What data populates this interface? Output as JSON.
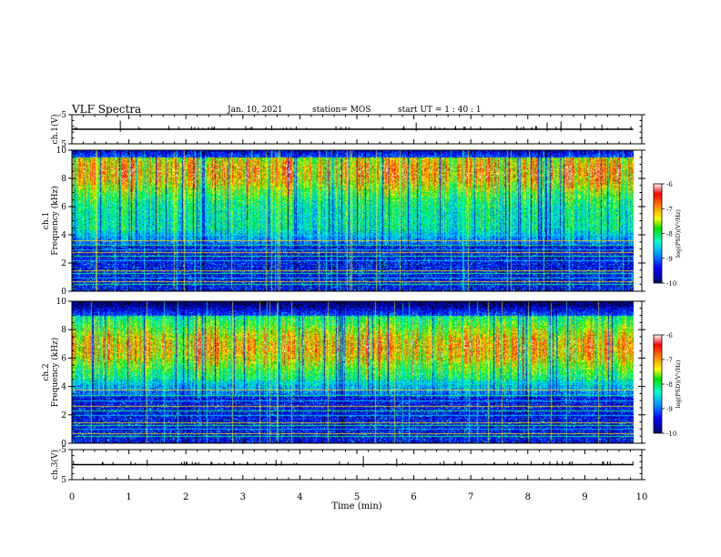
{
  "header": {
    "title": "VLF Spectra",
    "date": "Jan. 10, 2021",
    "station": "station= MOS",
    "start_ut": "start  UT =   1 : 40 : 1"
  },
  "panels": {
    "ch1_wave": {
      "ylabel": "ch.1(V)",
      "yticks": [
        "5",
        "-5"
      ]
    },
    "ch1_spec": {
      "ylabel_line1": "ch.1",
      "ylabel_line2": "Frequency (kHz)",
      "yticks": [
        "0",
        "2",
        "4",
        "6",
        "8",
        "10"
      ]
    },
    "ch2_spec": {
      "ylabel_line1": "ch.2",
      "ylabel_line2": "Frequency (kHz)",
      "yticks": [
        "0",
        "2",
        "4",
        "6",
        "8",
        "10"
      ]
    },
    "ch3_wave": {
      "ylabel": "ch.3(V)",
      "yticks": [
        "5",
        "-5"
      ]
    }
  },
  "xaxis": {
    "label": "Time (min)",
    "ticks": [
      "0",
      "1",
      "2",
      "3",
      "4",
      "5",
      "6",
      "7",
      "8",
      "9",
      "10"
    ]
  },
  "colorbar": {
    "label": "log(PSD)(V²/Hz)",
    "ticks": [
      "-6",
      "-7",
      "-8",
      "-9",
      "-10"
    ]
  },
  "chart_data": [
    {
      "type": "line",
      "panel": "ch1_wave",
      "xlabel": "",
      "ylabel": "ch.1(V)",
      "xlim": [
        0,
        10
      ],
      "ylim": [
        -5,
        5
      ],
      "series": [
        {
          "x": [
            0,
            9.85
          ],
          "values": [
            0,
            0
          ]
        }
      ]
    },
    {
      "type": "heatmap",
      "panel": "ch1_spec",
      "xlabel": "",
      "ylabel": "Frequency (kHz)",
      "xlim": [
        0,
        10
      ],
      "ylim": [
        0,
        10
      ],
      "data_end_min": 9.85,
      "zlim": [
        -10,
        -6
      ],
      "colorbar_label": "log(PSD)(V²/Hz)",
      "intense_band_khz": [
        4.5,
        9.5
      ],
      "band_peak_khz": 8.5,
      "narrowband_lines_khz": [
        0.5,
        0.7,
        1.0,
        1.3,
        1.5,
        2.2,
        2.5,
        2.8,
        3.0,
        3.3,
        3.6,
        4.0
      ]
    },
    {
      "type": "heatmap",
      "panel": "ch2_spec",
      "xlabel": "",
      "ylabel": "Frequency (kHz)",
      "xlim": [
        0,
        10
      ],
      "ylim": [
        0,
        10
      ],
      "data_end_min": 9.85,
      "zlim": [
        -10,
        -6
      ],
      "colorbar_label": "log(PSD)(V²/Hz)",
      "intense_band_khz": [
        4.5,
        9.0
      ],
      "band_peak_khz": 6.8,
      "narrowband_lines_khz": [
        0.5,
        0.7,
        1.0,
        1.3,
        1.5,
        2.0,
        2.3,
        2.6,
        3.0,
        3.4,
        3.8,
        4.3
      ]
    },
    {
      "type": "line",
      "panel": "ch3_wave",
      "xlabel": "Time (min)",
      "ylabel": "ch.3(V)",
      "xlim": [
        0,
        10
      ],
      "ylim": [
        -5,
        5
      ],
      "series": [
        {
          "x": [
            0,
            9.85
          ],
          "values": [
            0,
            0
          ]
        }
      ]
    }
  ]
}
